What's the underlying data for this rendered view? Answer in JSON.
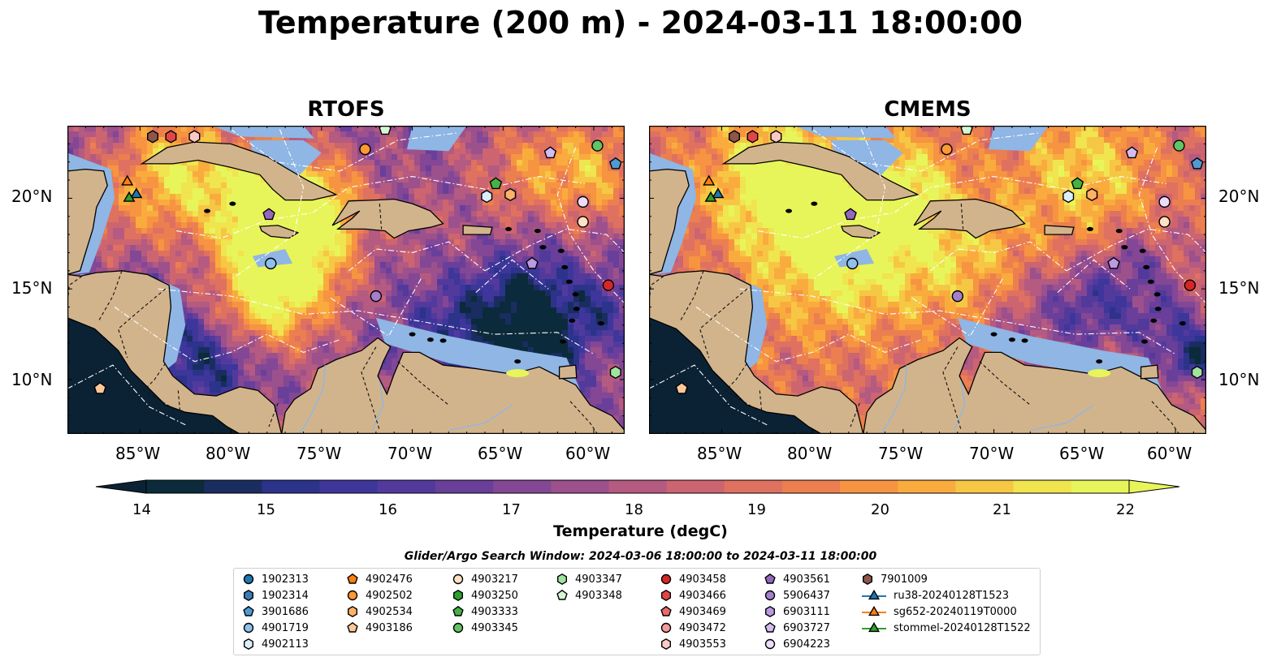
{
  "title": "Temperature (200 m) - 2024-03-11 18:00:00",
  "panels": [
    {
      "title": "RTOFS",
      "palette": "rtofs"
    },
    {
      "title": "CMEMS",
      "palette": "cmems"
    }
  ],
  "axes": {
    "lon_ticks": [
      "85°W",
      "80°W",
      "75°W",
      "70°W",
      "65°W",
      "60°W"
    ],
    "lat_ticks": [
      "20°N",
      "15°N",
      "10°N"
    ]
  },
  "colorbar": {
    "ticks": [
      "14",
      "15",
      "16",
      "17",
      "18",
      "19",
      "20",
      "21",
      "22"
    ],
    "label": "Temperature (degC)",
    "min": 14,
    "max": 22,
    "extend": "both",
    "colors": [
      "#0b2a3b",
      "#1a2d60",
      "#2c338a",
      "#3e369a",
      "#523a9c",
      "#693f9a",
      "#834795",
      "#9c508c",
      "#b55a80",
      "#cc6570",
      "#df7160",
      "#ec7f4f",
      "#f69442",
      "#f9ac3d",
      "#f6c744",
      "#f0e44f",
      "#e8f55a"
    ]
  },
  "legend": {
    "window_text": "Glider/Argo Search Window: 2024-03-06 18:00:00 to 2024-03-11 18:00:00",
    "items": [
      {
        "label": "1902313",
        "marker": "circle",
        "color": "#1f77b4"
      },
      {
        "label": "1902314",
        "marker": "hexagon",
        "color": "#3a7cb6"
      },
      {
        "label": "3901686",
        "marker": "pentagon",
        "color": "#4e9bd1"
      },
      {
        "label": "4901719",
        "marker": "circle",
        "color": "#8ec1ec"
      },
      {
        "label": "4902113",
        "marker": "hexagon",
        "color": "#dbeefc"
      },
      {
        "label": "4902476",
        "marker": "pentagon",
        "color": "#ff7f0e"
      },
      {
        "label": "4902502",
        "marker": "circle",
        "color": "#ff9933"
      },
      {
        "label": "4902534",
        "marker": "hexagon",
        "color": "#ffb266"
      },
      {
        "label": "4903186",
        "marker": "pentagon",
        "color": "#ffc89a"
      },
      {
        "label": "4903217",
        "marker": "circle",
        "color": "#ffe2c6"
      },
      {
        "label": "4903250",
        "marker": "hexagon",
        "color": "#2ca02c"
      },
      {
        "label": "4903333",
        "marker": "pentagon",
        "color": "#44b244"
      },
      {
        "label": "4903345",
        "marker": "circle",
        "color": "#62c462"
      },
      {
        "label": "4903347",
        "marker": "hexagon",
        "color": "#9fe39f"
      },
      {
        "label": "4903348",
        "marker": "pentagon",
        "color": "#d6f7d6"
      },
      {
        "label": "4903458",
        "marker": "circle",
        "color": "#d62728"
      },
      {
        "label": "4903466",
        "marker": "hexagon",
        "color": "#e04646"
      },
      {
        "label": "4903469",
        "marker": "pentagon",
        "color": "#eb6a6a"
      },
      {
        "label": "4903472",
        "marker": "circle",
        "color": "#f49a9a"
      },
      {
        "label": "4903553",
        "marker": "hexagon",
        "color": "#fbc7c7"
      },
      {
        "label": "4903561",
        "marker": "pentagon",
        "color": "#9467bd"
      },
      {
        "label": "5906437",
        "marker": "circle",
        "color": "#a47fcc"
      },
      {
        "label": "6903111",
        "marker": "hexagon",
        "color": "#bb9ae0"
      },
      {
        "label": "6903727",
        "marker": "pentagon",
        "color": "#d4bbf0"
      },
      {
        "label": "6904223",
        "marker": "circle",
        "color": "#ecdcfb"
      },
      {
        "label": "7901009",
        "marker": "hexagon",
        "color": "#8c564b"
      },
      {
        "label": "ru38-20240128T1523",
        "marker": "line-triangle",
        "color": "#1f77b4"
      },
      {
        "label": "sg652-20240119T0000",
        "marker": "line-triangle",
        "color": "#ff7f0e"
      },
      {
        "label": "stommel-20240128T1522",
        "marker": "line-triangle",
        "color": "#2ca02c"
      }
    ]
  },
  "map_markers": [
    {
      "lon": -84.3,
      "lat": 23.4,
      "marker": "hexagon",
      "color": "#8c564b"
    },
    {
      "lon": -83.3,
      "lat": 23.4,
      "marker": "hexagon",
      "color": "#e04646"
    },
    {
      "lon": -82.0,
      "lat": 23.4,
      "marker": "hexagon",
      "color": "#fbc7c7"
    },
    {
      "lon": -72.6,
      "lat": 22.7,
      "marker": "circle",
      "color": "#ff9933"
    },
    {
      "lon": -71.5,
      "lat": 23.8,
      "marker": "pentagon",
      "color": "#d6f7d6"
    },
    {
      "lon": -62.4,
      "lat": 22.5,
      "marker": "pentagon",
      "color": "#d4bbf0"
    },
    {
      "lon": -59.8,
      "lat": 22.9,
      "marker": "circle",
      "color": "#62c462"
    },
    {
      "lon": -58.8,
      "lat": 21.9,
      "marker": "pentagon",
      "color": "#4e9bd1"
    },
    {
      "lon": -58.0,
      "lat": 21.2,
      "marker": "circle",
      "color": "#1f77b4"
    },
    {
      "lon": -65.4,
      "lat": 20.8,
      "marker": "pentagon",
      "color": "#44b244"
    },
    {
      "lon": -65.9,
      "lat": 20.1,
      "marker": "hexagon",
      "color": "#dbeefc"
    },
    {
      "lon": -64.6,
      "lat": 20.2,
      "marker": "hexagon",
      "color": "#ffb266"
    },
    {
      "lon": -60.6,
      "lat": 19.8,
      "marker": "circle",
      "color": "#ecdcfb"
    },
    {
      "lon": -60.6,
      "lat": 18.7,
      "marker": "circle",
      "color": "#ffe2c6"
    },
    {
      "lon": -77.9,
      "lat": 19.1,
      "marker": "pentagon",
      "color": "#9467bd"
    },
    {
      "lon": -77.8,
      "lat": 16.4,
      "marker": "circle",
      "color": "#8ec1ec"
    },
    {
      "lon": -63.4,
      "lat": 16.4,
      "marker": "pentagon",
      "color": "#bb9ae0"
    },
    {
      "lon": -72.0,
      "lat": 14.6,
      "marker": "circle",
      "color": "#a47fcc"
    },
    {
      "lon": -59.2,
      "lat": 15.2,
      "marker": "circle",
      "color": "#d62728"
    },
    {
      "lon": -58.8,
      "lat": 10.4,
      "marker": "hexagon",
      "color": "#9fe39f"
    },
    {
      "lon": -87.2,
      "lat": 9.5,
      "marker": "pentagon",
      "color": "#ffc89a"
    },
    {
      "lon": -85.7,
      "lat": 20.9,
      "marker": "triangle",
      "color": "#ff7f0e"
    },
    {
      "lon": -85.2,
      "lat": 20.2,
      "marker": "triangle",
      "color": "#1f77b4"
    },
    {
      "lon": -85.6,
      "lat": 20.0,
      "marker": "triangle",
      "color": "#2ca02c"
    }
  ]
}
